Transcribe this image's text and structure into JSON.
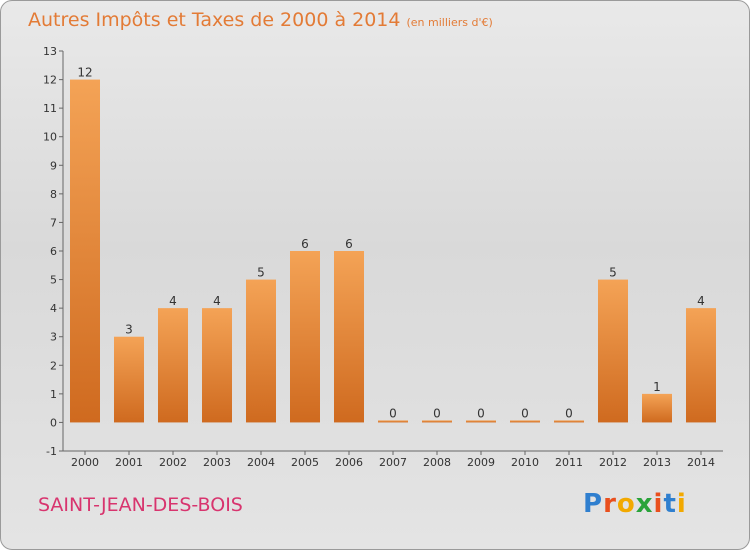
{
  "title": "Autres Impôts et Taxes de 2000 à 2014",
  "subtitle": "(en milliers d'€)",
  "commune": "SAINT-JEAN-DES-BOIS",
  "logo": {
    "text": "Proxiti",
    "colors": [
      "#2f7fcf",
      "#e94f1d",
      "#f2a900",
      "#29a33a",
      "#e94f1d",
      "#2f7fcf",
      "#f2a900"
    ]
  },
  "colors": {
    "accent": "#e37b36",
    "bar": "#e8843a",
    "commune": "#d8346e"
  },
  "chart_data": {
    "type": "bar",
    "categories": [
      "2000",
      "2001",
      "2002",
      "2003",
      "2004",
      "2005",
      "2006",
      "2007",
      "2008",
      "2009",
      "2010",
      "2011",
      "2012",
      "2013",
      "2014"
    ],
    "values": [
      12,
      3,
      4,
      4,
      5,
      6,
      6,
      0,
      0,
      0,
      0,
      0,
      5,
      1,
      4
    ],
    "data_labels": [
      "12",
      "3",
      "4",
      "4",
      "5",
      "6",
      "6",
      "0",
      "0",
      "0",
      "0",
      "0",
      "5",
      "1",
      "4"
    ],
    "yticks": [
      -1,
      0,
      1,
      2,
      3,
      4,
      5,
      6,
      7,
      8,
      9,
      10,
      11,
      12,
      13
    ],
    "ylim": [
      -1,
      13
    ],
    "grid": false,
    "legend": "none"
  }
}
